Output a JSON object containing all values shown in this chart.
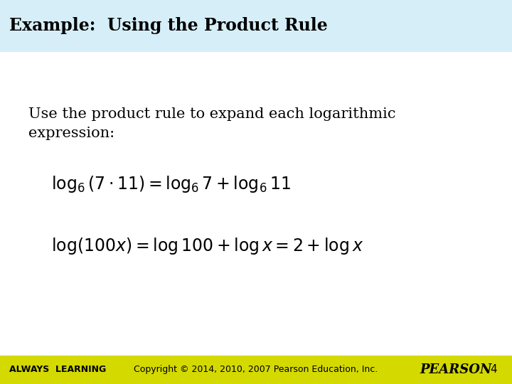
{
  "title": "Example:  Using the Product Rule",
  "title_bg_color": "#d6eef8",
  "main_bg_color": "#ffffff",
  "footer_bg_color": "#d4d900",
  "body_text": "Use the product rule to expand each logarithmic\nexpression:",
  "eq1": "$\\log_6(7 \\cdot 11)  = \\log_6 7 + \\log_6 11$",
  "eq2": "$\\log(100x)  = \\log 100 + \\log x  = 2 + \\log x$",
  "footer_left": "ALWAYS  LEARNING",
  "footer_center": "Copyright © 2014, 2010, 2007 Pearson Education, Inc.",
  "footer_right": "PEARSON",
  "page_number": "4",
  "title_fontsize": 17,
  "body_fontsize": 15,
  "eq_fontsize": 17,
  "footer_fontsize": 10,
  "title_color": "#000000",
  "body_color": "#000000",
  "footer_text_color": "#000000",
  "pearson_color": "#000000"
}
